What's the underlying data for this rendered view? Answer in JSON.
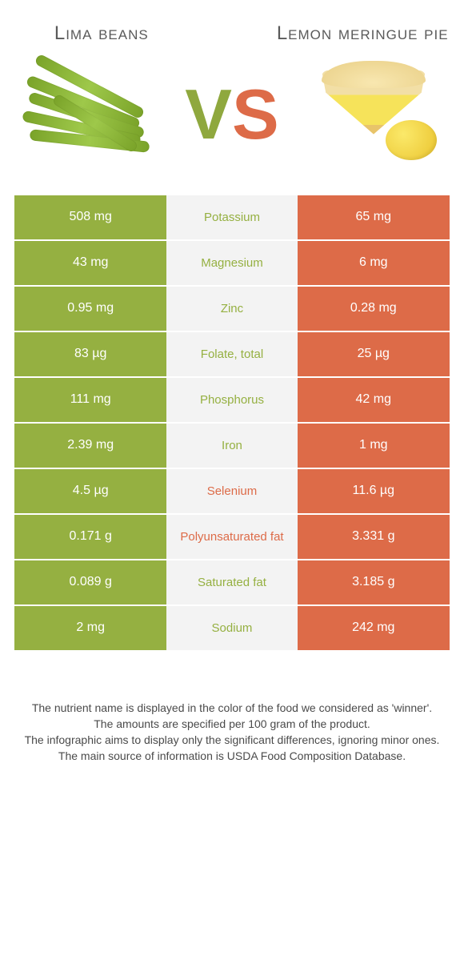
{
  "colors": {
    "left": "#95b041",
    "right": "#dd6b48",
    "mid_bg": "#f3f3f3",
    "text": "#4a4a4a"
  },
  "header": {
    "left_title": "Lima beans",
    "right_title": "Lemon meringue pie"
  },
  "vs": {
    "v": "V",
    "s": "S"
  },
  "rows": [
    {
      "left": "508 mg",
      "label": "Potassium",
      "right": "65 mg",
      "winner": "left"
    },
    {
      "left": "43 mg",
      "label": "Magnesium",
      "right": "6 mg",
      "winner": "left"
    },
    {
      "left": "0.95 mg",
      "label": "Zinc",
      "right": "0.28 mg",
      "winner": "left"
    },
    {
      "left": "83 µg",
      "label": "Folate, total",
      "right": "25 µg",
      "winner": "left"
    },
    {
      "left": "111 mg",
      "label": "Phosphorus",
      "right": "42 mg",
      "winner": "left"
    },
    {
      "left": "2.39 mg",
      "label": "Iron",
      "right": "1 mg",
      "winner": "left"
    },
    {
      "left": "4.5 µg",
      "label": "Selenium",
      "right": "11.6 µg",
      "winner": "right"
    },
    {
      "left": "0.171 g",
      "label": "Polyunsaturated fat",
      "right": "3.331 g",
      "winner": "right"
    },
    {
      "left": "0.089 g",
      "label": "Saturated fat",
      "right": "3.185 g",
      "winner": "left"
    },
    {
      "left": "2 mg",
      "label": "Sodium",
      "right": "242 mg",
      "winner": "left"
    }
  ],
  "footer": {
    "l1": "The nutrient name is displayed in the color of the food we considered as 'winner'.",
    "l2": "The amounts are specified per 100 gram of the product.",
    "l3": "The infographic aims to display only the significant differences, ignoring minor ones.",
    "l4": "The main source of information is USDA Food Composition Database."
  }
}
